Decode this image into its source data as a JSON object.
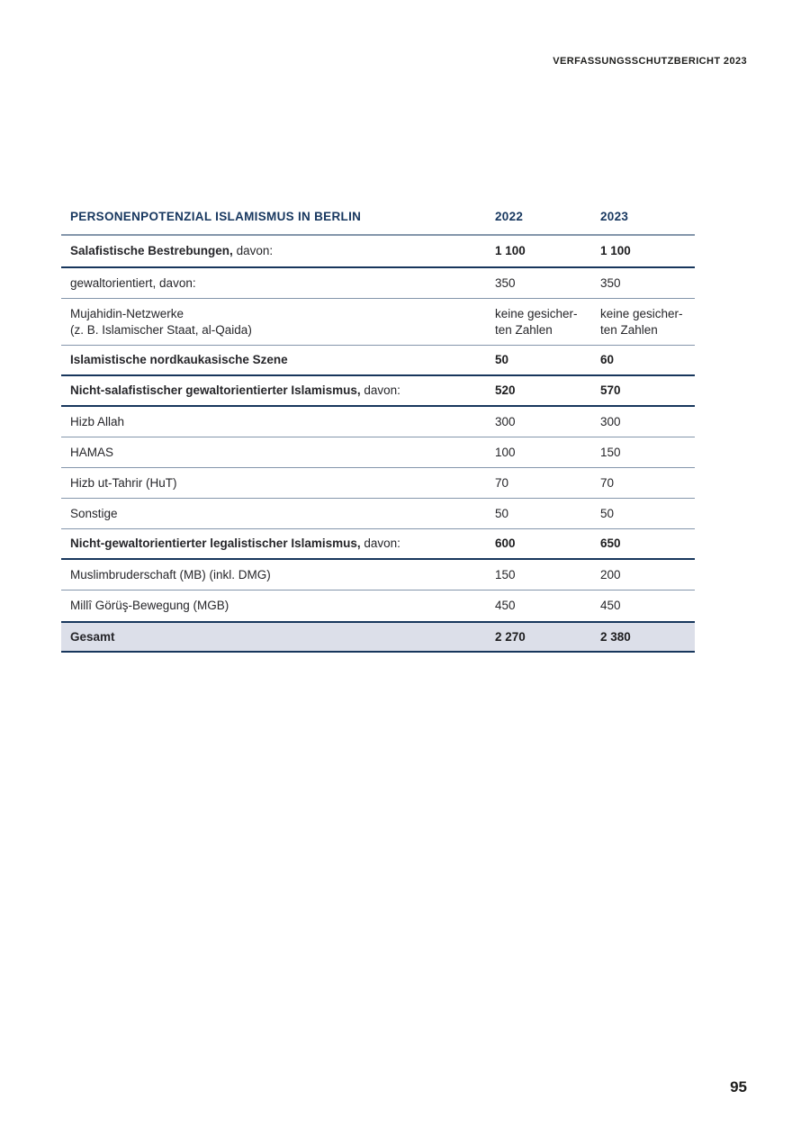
{
  "doc_header": "VERFASSUNGSSCHUTZBERICHT 2023",
  "page_number": "95",
  "colors": {
    "navy_heading": "#17375f",
    "separator_steel": "#8496ab",
    "separator_dark": "#17365c",
    "total_row_bg": "#dcdfe9",
    "body_text": "#26262a"
  },
  "table": {
    "title": "PERSONENPOTENZIAL ISLAMISMUS IN BERLIN",
    "col_2022": "2022",
    "col_2023": "2023",
    "rows": [
      {
        "label": "Salafistische Bestrebungen,",
        "suffix": " davon:",
        "v2022": "1 100",
        "v2023": "1 100"
      },
      {
        "label": "gewaltorientiert, davon:",
        "v2022": "350",
        "v2023": "350"
      },
      {
        "label": "Mujahidin-Netzwerke\n(z. B. Islamischer Staat, al-Qaida)",
        "v2022": "keine gesicher-\nten Zahlen",
        "v2023": "keine gesicher-\nten Zahlen"
      },
      {
        "label": "Islamistische nordkaukasische Szene",
        "v2022": "50",
        "v2023": "60"
      },
      {
        "label": "Nicht-salafistischer gewaltorientierter Islamismus,",
        "suffix": " davon:",
        "v2022": "520",
        "v2023": "570"
      },
      {
        "label": "Hizb Allah",
        "v2022": "300",
        "v2023": "300"
      },
      {
        "label": "HAMAS",
        "v2022": "100",
        "v2023": "150"
      },
      {
        "label": "Hizb ut-Tahrir (HuT)",
        "v2022": "70",
        "v2023": "70"
      },
      {
        "label": "Sonstige",
        "v2022": "50",
        "v2023": "50"
      },
      {
        "label": "Nicht-gewaltorientierter legalistischer Islamismus,",
        "suffix": " davon:",
        "v2022": "600",
        "v2023": "650"
      },
      {
        "label": "Muslimbruderschaft (MB) (inkl. DMG)",
        "v2022": "150",
        "v2023": "200"
      },
      {
        "label": "Millî Görüş-Bewegung (MGB)",
        "v2022": "450",
        "v2023": "450"
      },
      {
        "label": "Gesamt",
        "v2022": "2 270",
        "v2023": "2 380"
      }
    ]
  }
}
